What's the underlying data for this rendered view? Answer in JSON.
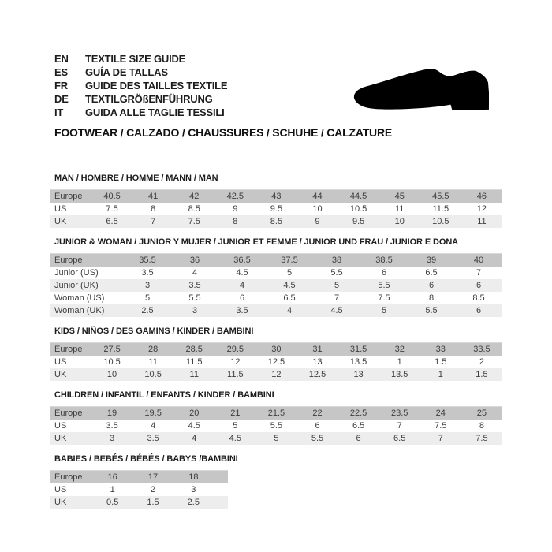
{
  "header": {
    "languages": [
      {
        "code": "EN",
        "label": "TEXTILE SIZE GUIDE"
      },
      {
        "code": "ES",
        "label": "GUÍA DE TALLAS"
      },
      {
        "code": "FR",
        "label": "GUIDE DES TAILLES TEXTILE"
      },
      {
        "code": "DE",
        "label": "TEXTILGRÖßENFÜHRUNG"
      },
      {
        "code": "IT",
        "label": "GUIDA ALLE TAGLIE TESSILI"
      }
    ],
    "category_line": "FOOTWEAR / CALZADO / CHAUSSURES / SCHUHE / CALZATURE",
    "shoe_icon": "dress-shoe-silhouette"
  },
  "colors": {
    "header_row_bg": "#c6c6c6",
    "alt_row_bg": "#ededed",
    "table_text": "#3e3e3e",
    "heading_text": "#1c1c1c",
    "shoe": "#000000"
  },
  "tables": [
    {
      "title": "MAN / HOMBRE / HOMME / MANN / MAN",
      "rows": [
        {
          "label": "Europe",
          "values": [
            "40.5",
            "41",
            "42",
            "42.5",
            "43",
            "44",
            "44.5",
            "45",
            "45.5",
            "46"
          ]
        },
        {
          "label": "US",
          "values": [
            "7.5",
            "8",
            "8.5",
            "9",
            "9.5",
            "10",
            "10.5",
            "11",
            "11.5",
            "12"
          ]
        },
        {
          "label": "UK",
          "values": [
            "6.5",
            "7",
            "7.5",
            "8",
            "8.5",
            "9",
            "9.5",
            "10",
            "10.5",
            "11"
          ]
        }
      ]
    },
    {
      "title": "JUNIOR & WOMAN / JUNIOR Y MUJER / JUNIOR ET FEMME / JUNIOR UND FRAU / JUNIOR E DONA",
      "rows": [
        {
          "label": "Europe",
          "values": [
            "35.5",
            "36",
            "36.5",
            "37.5",
            "38",
            "38.5",
            "39",
            "40"
          ]
        },
        {
          "label": "Junior (US)",
          "values": [
            "3.5",
            "4",
            "4.5",
            "5",
            "5.5",
            "6",
            "6.5",
            "7"
          ]
        },
        {
          "label": "Junior (UK)",
          "values": [
            "3",
            "3.5",
            "4",
            "4.5",
            "5",
            "5.5",
            "6",
            "6"
          ]
        },
        {
          "label": "Woman (US)",
          "values": [
            "5",
            "5.5",
            "6",
            "6.5",
            "7",
            "7.5",
            "8",
            "8.5"
          ]
        },
        {
          "label": "Woman (UK)",
          "values": [
            "2.5",
            "3",
            "3.5",
            "4",
            "4.5",
            "5",
            "5.5",
            "6"
          ]
        }
      ]
    },
    {
      "title": "KIDS / NIÑOS / DES GAMINS / KINDER / BAMBINI",
      "rows": [
        {
          "label": "Europe",
          "values": [
            "27.5",
            "28",
            "28.5",
            "29.5",
            "30",
            "31",
            "31.5",
            "32",
            "33",
            "33.5"
          ]
        },
        {
          "label": "US",
          "values": [
            "10.5",
            "11",
            "11.5",
            "12",
            "12.5",
            "13",
            "13.5",
            "1",
            "1.5",
            "2"
          ]
        },
        {
          "label": "UK",
          "values": [
            "10",
            "10.5",
            "11",
            "11.5",
            "12",
            "12.5",
            "13",
            "13.5",
            "1",
            "1.5"
          ]
        }
      ]
    },
    {
      "title": "CHILDREN / INFANTIL / ENFANTS / KINDER / BAMBINI",
      "rows": [
        {
          "label": "Europe",
          "values": [
            "19",
            "19.5",
            "20",
            "21",
            "21.5",
            "22",
            "22.5",
            "23.5",
            "24",
            "25"
          ]
        },
        {
          "label": "US",
          "values": [
            "3.5",
            "4",
            "4.5",
            "5",
            "5.5",
            "6",
            "6.5",
            "7",
            "7.5",
            "8"
          ]
        },
        {
          "label": "UK",
          "values": [
            "3",
            "3.5",
            "4",
            "4.5",
            "5",
            "5.5",
            "6",
            "6.5",
            "7",
            "7.5"
          ]
        }
      ]
    },
    {
      "title": "BABIES / BEBÉS / BÉBÉS / BABYS /BAMBINI",
      "rows": [
        {
          "label": "Europe",
          "values": [
            "16",
            "17",
            "18"
          ]
        },
        {
          "label": "US",
          "values": [
            "1",
            "2",
            "3"
          ]
        },
        {
          "label": "UK",
          "values": [
            "0.5",
            "1.5",
            "2.5"
          ]
        }
      ]
    }
  ]
}
